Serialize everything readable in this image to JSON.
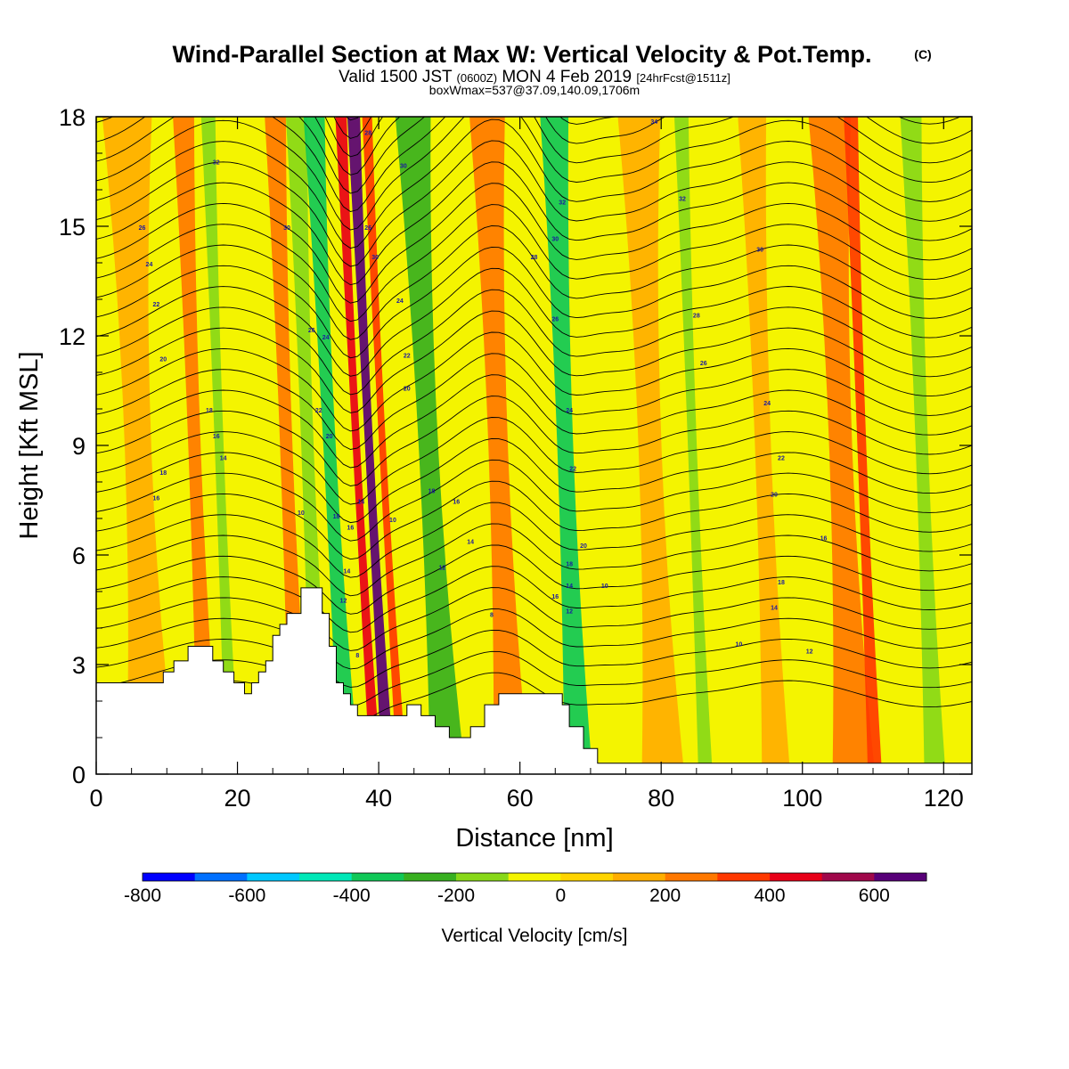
{
  "title": {
    "main": "Wind-Parallel Section at Max W: Vertical Velocity & Pot.Temp.",
    "copyright": "(C)",
    "valid_prefix": "Valid 1500 JST",
    "valid_utc": "(0600Z)",
    "valid_date": "MON 4 Feb 2019",
    "forecast": "[24hrFcst@1511z]",
    "boxwmax": "boxWmax=537@37.09,140.09,1706m"
  },
  "chart_data": {
    "type": "heatmap",
    "xlabel": "Distance [nm]",
    "ylabel": "Height [Kft MSL]",
    "xlim": [
      0,
      124
    ],
    "ylim": [
      0,
      18
    ],
    "x_ticks": [
      "0",
      "20",
      "40",
      "60",
      "80",
      "100",
      "120"
    ],
    "y_ticks": [
      "0",
      "3",
      "6",
      "9",
      "12",
      "15",
      "18"
    ],
    "colorbar": {
      "title": "Vertical Velocity [cm/s]",
      "levels": [
        -800,
        -700,
        -600,
        -500,
        -400,
        -300,
        -200,
        -100,
        0,
        100,
        200,
        300,
        400,
        500,
        600,
        700
      ],
      "labels": [
        "-800",
        "-600",
        "-400",
        "-200",
        "0",
        "200",
        "400",
        "600"
      ],
      "colors": [
        "#0000ff",
        "#0070ff",
        "#00c8ff",
        "#00e8b8",
        "#10c858",
        "#38b020",
        "#88d818",
        "#f4f400",
        "#ffd400",
        "#ffae00",
        "#ff7800",
        "#ff3800",
        "#e80018",
        "#a0084a",
        "#580078"
      ]
    },
    "vertical_velocity_bands": [
      {
        "x": 2,
        "w": 7,
        "value": 100
      },
      {
        "x": 12,
        "w": 3,
        "value": 200
      },
      {
        "x": 16,
        "w": 2,
        "value": -200
      },
      {
        "x": 25,
        "w": 3,
        "value": 200
      },
      {
        "x": 28,
        "w": 3,
        "value": -200
      },
      {
        "x": 31,
        "w": 3,
        "value": -400
      },
      {
        "x": 35.5,
        "w": 1.6,
        "value": 400
      },
      {
        "x": 37.2,
        "w": 1.8,
        "value": 650
      },
      {
        "x": 39.3,
        "w": 1.4,
        "value": 300
      },
      {
        "x": 44,
        "w": 5,
        "value": -300
      },
      {
        "x": 54,
        "w": 5,
        "value": 200
      },
      {
        "x": 64,
        "w": 4,
        "value": -400
      },
      {
        "x": 75,
        "w": 6,
        "value": 150
      },
      {
        "x": 83,
        "w": 2,
        "value": -200
      },
      {
        "x": 92,
        "w": 4,
        "value": 150
      },
      {
        "x": 102,
        "w": 6,
        "value": 250
      },
      {
        "x": 107,
        "w": 2,
        "value": 350
      },
      {
        "x": 115,
        "w": 3,
        "value": -200
      }
    ],
    "terrain_kft": [
      [
        0,
        2.5
      ],
      [
        9.5,
        2.5
      ],
      [
        9.5,
        2.8
      ],
      [
        11,
        2.8
      ],
      [
        11,
        3.1
      ],
      [
        13,
        3.1
      ],
      [
        13,
        3.5
      ],
      [
        16.5,
        3.5
      ],
      [
        16.5,
        3.1
      ],
      [
        18,
        3.1
      ],
      [
        18,
        2.8
      ],
      [
        19.5,
        2.8
      ],
      [
        19.5,
        2.5
      ],
      [
        21,
        2.5
      ],
      [
        21,
        2.2
      ],
      [
        22,
        2.2
      ],
      [
        22,
        2.5
      ],
      [
        23,
        2.5
      ],
      [
        23,
        2.8
      ],
      [
        24,
        2.8
      ],
      [
        24,
        3.1
      ],
      [
        25,
        3.1
      ],
      [
        25,
        3.8
      ],
      [
        26,
        3.8
      ],
      [
        26,
        4.1
      ],
      [
        27,
        4.1
      ],
      [
        27,
        4.4
      ],
      [
        29,
        4.4
      ],
      [
        29,
        5.1
      ],
      [
        32,
        5.1
      ],
      [
        32,
        4.4
      ],
      [
        33,
        4.4
      ],
      [
        33,
        3.5
      ],
      [
        34,
        3.5
      ],
      [
        34,
        2.5
      ],
      [
        35,
        2.5
      ],
      [
        35,
        2.2
      ],
      [
        36,
        2.2
      ],
      [
        36,
        1.9
      ],
      [
        37,
        1.9
      ],
      [
        37,
        1.6
      ],
      [
        44,
        1.6
      ],
      [
        44,
        1.9
      ],
      [
        46,
        1.9
      ],
      [
        46,
        1.6
      ],
      [
        48,
        1.6
      ],
      [
        48,
        1.3
      ],
      [
        50,
        1.3
      ],
      [
        50,
        1.0
      ],
      [
        53,
        1.0
      ],
      [
        53,
        1.3
      ],
      [
        55,
        1.3
      ],
      [
        55,
        1.9
      ],
      [
        57,
        1.9
      ],
      [
        57,
        2.2
      ],
      [
        66,
        2.2
      ],
      [
        66,
        1.9
      ],
      [
        67,
        1.9
      ],
      [
        67,
        1.3
      ],
      [
        69,
        1.3
      ],
      [
        69,
        0.7
      ],
      [
        71,
        0.7
      ],
      [
        71,
        0.3
      ],
      [
        124,
        0.3
      ]
    ],
    "contour_labels": [
      {
        "x": 17,
        "y": 16.7,
        "text": "32"
      },
      {
        "x": 6.5,
        "y": 14.9,
        "text": "26"
      },
      {
        "x": 7.5,
        "y": 13.9,
        "text": "24"
      },
      {
        "x": 8.5,
        "y": 12.8,
        "text": "22"
      },
      {
        "x": 9.5,
        "y": 11.3,
        "text": "20"
      },
      {
        "x": 16,
        "y": 9.9,
        "text": "18"
      },
      {
        "x": 17,
        "y": 9.2,
        "text": "16"
      },
      {
        "x": 18,
        "y": 8.6,
        "text": "14"
      },
      {
        "x": 9.5,
        "y": 8.2,
        "text": "18"
      },
      {
        "x": 8.5,
        "y": 7.5,
        "text": "16"
      },
      {
        "x": 29,
        "y": 7.1,
        "text": "10"
      },
      {
        "x": 27,
        "y": 14.9,
        "text": "30"
      },
      {
        "x": 30.5,
        "y": 12.1,
        "text": "26"
      },
      {
        "x": 32.5,
        "y": 11.9,
        "text": "24"
      },
      {
        "x": 31.5,
        "y": 9.9,
        "text": "22"
      },
      {
        "x": 33,
        "y": 9.2,
        "text": "20"
      },
      {
        "x": 34,
        "y": 7,
        "text": "18"
      },
      {
        "x": 36,
        "y": 6.7,
        "text": "16"
      },
      {
        "x": 35.5,
        "y": 5.5,
        "text": "14"
      },
      {
        "x": 35,
        "y": 4.7,
        "text": "12"
      },
      {
        "x": 37,
        "y": 3.2,
        "text": "8"
      },
      {
        "x": 37.5,
        "y": 7.4,
        "text": "14"
      },
      {
        "x": 38.5,
        "y": 17.5,
        "text": "28"
      },
      {
        "x": 38.5,
        "y": 14.9,
        "text": "26"
      },
      {
        "x": 39.5,
        "y": 14.1,
        "text": "30"
      },
      {
        "x": 43.5,
        "y": 16.6,
        "text": "30"
      },
      {
        "x": 43,
        "y": 12.9,
        "text": "24"
      },
      {
        "x": 44,
        "y": 11.4,
        "text": "22"
      },
      {
        "x": 44,
        "y": 10.5,
        "text": "20"
      },
      {
        "x": 47.5,
        "y": 7.7,
        "text": "18"
      },
      {
        "x": 51,
        "y": 7.4,
        "text": "16"
      },
      {
        "x": 42,
        "y": 6.9,
        "text": "10"
      },
      {
        "x": 53,
        "y": 6.3,
        "text": "14"
      },
      {
        "x": 49,
        "y": 5.6,
        "text": "12"
      },
      {
        "x": 56,
        "y": 4.3,
        "text": "8"
      },
      {
        "x": 66,
        "y": 15.6,
        "text": "32"
      },
      {
        "x": 65,
        "y": 14.6,
        "text": "30"
      },
      {
        "x": 62,
        "y": 14.1,
        "text": "28"
      },
      {
        "x": 65,
        "y": 12.4,
        "text": "26"
      },
      {
        "x": 67,
        "y": 9.9,
        "text": "24"
      },
      {
        "x": 67.5,
        "y": 8.3,
        "text": "22"
      },
      {
        "x": 69,
        "y": 6.2,
        "text": "20"
      },
      {
        "x": 67,
        "y": 5.7,
        "text": "18"
      },
      {
        "x": 67,
        "y": 5.1,
        "text": "14"
      },
      {
        "x": 65,
        "y": 4.8,
        "text": "16"
      },
      {
        "x": 67,
        "y": 4.4,
        "text": "12"
      },
      {
        "x": 72,
        "y": 5.1,
        "text": "10"
      },
      {
        "x": 79,
        "y": 17.8,
        "text": "34"
      },
      {
        "x": 83,
        "y": 15.7,
        "text": "32"
      },
      {
        "x": 94,
        "y": 14.3,
        "text": "30"
      },
      {
        "x": 85,
        "y": 12.5,
        "text": "28"
      },
      {
        "x": 86,
        "y": 11.2,
        "text": "26"
      },
      {
        "x": 95,
        "y": 10.1,
        "text": "24"
      },
      {
        "x": 97,
        "y": 8.6,
        "text": "22"
      },
      {
        "x": 96,
        "y": 7.6,
        "text": "20"
      },
      {
        "x": 103,
        "y": 6.4,
        "text": "16"
      },
      {
        "x": 97,
        "y": 5.2,
        "text": "18"
      },
      {
        "x": 96,
        "y": 4.5,
        "text": "14"
      },
      {
        "x": 101,
        "y": 3.3,
        "text": "12"
      },
      {
        "x": 91,
        "y": 3.5,
        "text": "10"
      }
    ]
  }
}
